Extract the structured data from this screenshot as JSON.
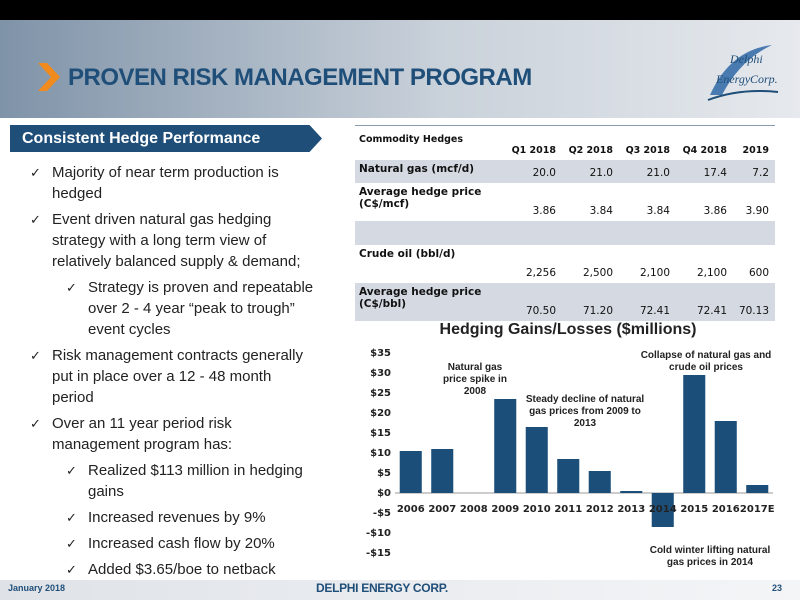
{
  "header": {
    "title": "PROVEN RISK MANAGEMENT PROGRAM",
    "logo": [
      "Delphi",
      "Energy",
      "Corp."
    ]
  },
  "sidebar": {
    "heading": "Consistent Hedge Performance",
    "bullets": [
      {
        "level": 0,
        "text": "Majority of near term production is hedged"
      },
      {
        "level": 0,
        "text": "Event driven natural gas hedging strategy with a long term view of relatively balanced supply & demand;"
      },
      {
        "level": 1,
        "text": "Strategy is proven and repeatable over 2 - 4 year “peak to trough” event cycles"
      },
      {
        "level": 0,
        "text": "Risk management contracts generally put in place over a 12 - 48 month period"
      },
      {
        "level": 0,
        "text": "Over an 11 year period risk management program has:"
      },
      {
        "level": 1,
        "text": "Realized $113 million in hedging gains"
      },
      {
        "level": 1,
        "text": "Increased revenues by 9%"
      },
      {
        "level": 1,
        "text": "Increased cash flow by 20%"
      },
      {
        "level": 1,
        "text": "Added $3.65/boe to netback"
      }
    ]
  },
  "table": {
    "title": "Commodity Hedges",
    "columns": [
      "Q1 2018",
      "Q2 2018",
      "Q3 2018",
      "Q4 2018",
      "2019"
    ],
    "groups": [
      [
        {
          "label": "Natural gas (mcf/d)",
          "values": [
            "20.0",
            "21.0",
            "21.0",
            "17.4",
            "7.2"
          ]
        },
        {
          "label": "Average hedge price (C$/mcf)",
          "values": [
            "3.86",
            "3.84",
            "3.84",
            "3.86",
            "3.90"
          ]
        }
      ],
      [
        {
          "label": "Crude oil (bbl/d)",
          "values": [
            "2,256",
            "2,500",
            "2,100",
            "2,100",
            "600"
          ]
        },
        {
          "label": "Average hedge price (C$/bbl)",
          "values": [
            "70.50",
            "71.20",
            "72.41",
            "72.41",
            "70.13"
          ]
        }
      ]
    ]
  },
  "chart_data": {
    "type": "bar",
    "title": "Hedging Gains/Losses ($millions)",
    "categories": [
      "2006",
      "2007",
      "2008",
      "2009",
      "2010",
      "2011",
      "2012",
      "2013",
      "2014",
      "2015",
      "2016",
      "2017E"
    ],
    "values": [
      10.5,
      11,
      0,
      23.5,
      16.5,
      8.5,
      5.5,
      0.5,
      -8.5,
      29.5,
      18,
      2
    ],
    "color": "#1c4e7a",
    "ylim": [
      -15,
      35
    ],
    "yticks": [
      {
        "value": -15,
        "label": "-$15"
      },
      {
        "value": -10,
        "label": "-$10"
      },
      {
        "value": -5,
        "label": "-$5"
      },
      {
        "value": 0,
        "label": "$0"
      },
      {
        "value": 5,
        "label": "$5"
      },
      {
        "value": 10,
        "label": "$10"
      },
      {
        "value": 15,
        "label": "$15"
      },
      {
        "value": 20,
        "label": "$20"
      },
      {
        "value": 25,
        "label": "$25"
      },
      {
        "value": 30,
        "label": "$30"
      },
      {
        "value": 35,
        "label": "$35"
      }
    ],
    "annotations": [
      "Natural gas price spike in 2008",
      "Steady decline of natural gas prices from 2009 to 2013",
      "Collapse of natural gas and crude oil prices",
      "Cold winter lifting natural gas prices in 2014"
    ]
  },
  "footer": {
    "date": "January 2018",
    "company": "DELPHI ENERGY CORP.",
    "page": "23"
  }
}
